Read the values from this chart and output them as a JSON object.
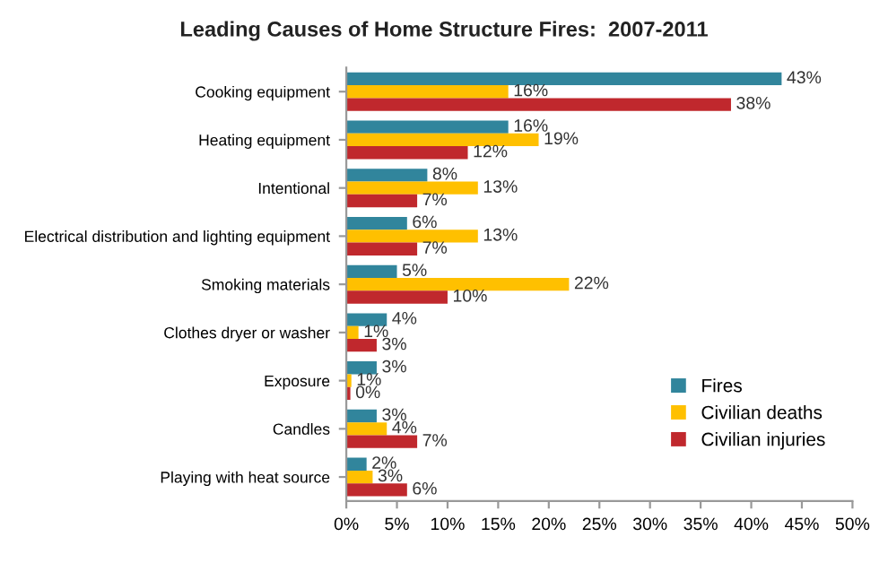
{
  "chart_data": {
    "type": "bar",
    "orientation": "horizontal",
    "title": "Leading Causes of Home Structure Fires:  2007-2011",
    "categories": [
      "Cooking equipment",
      "Heating equipment",
      "Intentional",
      "Electrical distribution and lighting equipment",
      "Smoking materials",
      "Clothes dryer or washer",
      "Exposure",
      "Candles",
      "Playing with heat source"
    ],
    "series": [
      {
        "name": "Fires",
        "color": "#31859c",
        "values": [
          43,
          16,
          8,
          6,
          5,
          4,
          3,
          3,
          2
        ],
        "value_labels": [
          "43%",
          "16%",
          "8%",
          "6%",
          "5%",
          "4%",
          "3%",
          "3%",
          "2%"
        ]
      },
      {
        "name": "Civilian deaths",
        "color": "#ffc000",
        "values": [
          16,
          19,
          13,
          13,
          22,
          1.2,
          0.5,
          4,
          2.6
        ],
        "value_labels": [
          "16%",
          "19%",
          "13%",
          "13%",
          "22%",
          "1%",
          "1%",
          "4%",
          "3%"
        ]
      },
      {
        "name": "Civilian injuries",
        "color": "#c0282d",
        "values": [
          38,
          12,
          7,
          7,
          10,
          3,
          0.4,
          7,
          6
        ],
        "value_labels": [
          "38%",
          "12%",
          "7%",
          "7%",
          "10%",
          "3%",
          "0%",
          "7%",
          "6%"
        ]
      }
    ],
    "xlim": [
      0,
      50
    ],
    "xticks": [
      {
        "value": 0,
        "label": "0%"
      },
      {
        "value": 5,
        "label": "5%"
      },
      {
        "value": 10,
        "label": "10%"
      },
      {
        "value": 15,
        "label": "15%"
      },
      {
        "value": 20,
        "label": "20%"
      },
      {
        "value": 25,
        "label": "25%"
      },
      {
        "value": 30,
        "label": "30%"
      },
      {
        "value": 35,
        "label": "35%"
      },
      {
        "value": 40,
        "label": "40%"
      },
      {
        "value": 45,
        "label": "45%"
      },
      {
        "value": 50,
        "label": "50%"
      }
    ],
    "grid": false,
    "legend": "bottom right"
  }
}
